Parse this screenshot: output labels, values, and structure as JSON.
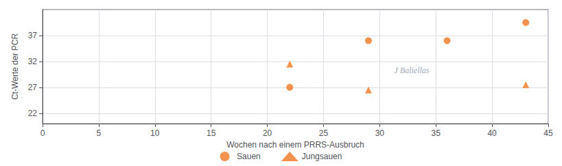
{
  "chart_data": {
    "type": "scatter",
    "xlabel": "Wochen nach einem PRRS-Ausbruch",
    "ylabel": "Ct-Werte der PCR",
    "series": [
      {
        "name": "Sauen",
        "color": "#f07820",
        "marker": "circle",
        "x": [
          22,
          29,
          36,
          43
        ],
        "values": [
          27,
          36,
          36,
          39.5
        ]
      },
      {
        "name": "Jungsauen",
        "color": "#f07820",
        "marker": "triangle",
        "x": [
          22,
          29,
          43
        ],
        "values": [
          31.5,
          26.5,
          27.5
        ]
      }
    ],
    "xlim": [
      0,
      45
    ],
    "ylim": [
      20,
      42
    ],
    "xticks": [
      0,
      5,
      10,
      15,
      20,
      25,
      30,
      35,
      40,
      45
    ],
    "yticks": [
      22,
      27,
      32,
      37
    ],
    "grid": true,
    "legend": "bottom",
    "annotations": [
      "J Baliellas"
    ]
  }
}
